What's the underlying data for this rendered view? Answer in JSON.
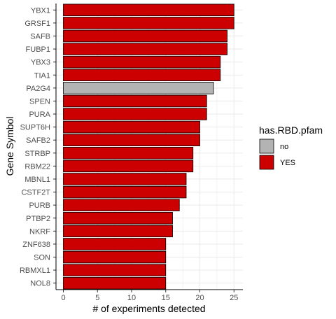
{
  "chart_data": {
    "type": "bar",
    "orientation": "horizontal",
    "xlabel": "# of experiments detected",
    "ylabel": "Gene Symbol",
    "xlim": [
      0,
      25
    ],
    "xticks": [
      0,
      5,
      10,
      15,
      20,
      25
    ],
    "grid": true,
    "categories": [
      "YBX1",
      "GRSF1",
      "SAFB",
      "FUBP1",
      "YBX3",
      "TIA1",
      "PA2G4",
      "SPEN",
      "PURA",
      "SUPT6H",
      "SAFB2",
      "STRBP",
      "RBM22",
      "MBNL1",
      "CSTF2T",
      "PURB",
      "PTBP2",
      "NKRF",
      "ZNF638",
      "SON",
      "RBMXL1",
      "NOL8"
    ],
    "values": [
      25,
      25,
      24,
      24,
      23,
      23,
      22,
      21,
      21,
      20,
      20,
      19,
      19,
      18,
      18,
      17,
      16,
      16,
      15,
      15,
      15,
      15
    ],
    "fill_group": [
      "YES",
      "YES",
      "YES",
      "YES",
      "YES",
      "YES",
      "no",
      "YES",
      "YES",
      "YES",
      "YES",
      "YES",
      "YES",
      "YES",
      "YES",
      "YES",
      "YES",
      "YES",
      "YES",
      "YES",
      "YES",
      "YES"
    ],
    "legend": {
      "title": "has.RBD.pfam",
      "position": "right",
      "entries": [
        {
          "label": "no",
          "color": "#b3b3b3"
        },
        {
          "label": "YES",
          "color": "#cc0000"
        }
      ]
    }
  }
}
